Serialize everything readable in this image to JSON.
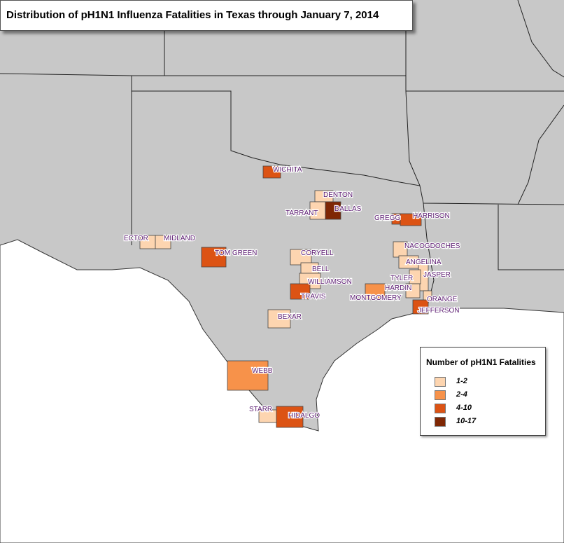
{
  "header": {
    "title": "Distribution of pH1N1 Influenza Fatalities in Texas through January 7, 2014"
  },
  "legend": {
    "title": "Number of pH1N1 Fatalities",
    "items": [
      {
        "label": "1-2",
        "color": "#fdd5b0"
      },
      {
        "label": "2-4",
        "color": "#f7924a"
      },
      {
        "label": "4-10",
        "color": "#dc5314"
      },
      {
        "label": "10-17",
        "color": "#7f2704"
      }
    ]
  },
  "counties": [
    {
      "name": "WICHITA",
      "color": "#dc5314"
    },
    {
      "name": "DENTON",
      "color": "#fdd5b0"
    },
    {
      "name": "TARRANT",
      "color": "#fdd5b0"
    },
    {
      "name": "DALLAS",
      "color": "#7f2704"
    },
    {
      "name": "GREGG",
      "color": "#dc5314"
    },
    {
      "name": "HARRISON",
      "color": "#dc5314"
    },
    {
      "name": "ECTOR",
      "color": "#fdd5b0"
    },
    {
      "name": "MIDLAND",
      "color": "#fdd5b0"
    },
    {
      "name": "TOM GREEN",
      "color": "#dc5314"
    },
    {
      "name": "CORYELL",
      "color": "#fdd5b0"
    },
    {
      "name": "BELL",
      "color": "#fdd5b0"
    },
    {
      "name": "WILLIAMSON",
      "color": "#fdd5b0"
    },
    {
      "name": "TRAVIS",
      "color": "#dc5314"
    },
    {
      "name": "NACOGDOCHES",
      "color": "#fdd5b0"
    },
    {
      "name": "ANGELINA",
      "color": "#fdd5b0"
    },
    {
      "name": "JASPER",
      "color": "#fdd5b0"
    },
    {
      "name": "TYLER",
      "color": "#fdd5b0"
    },
    {
      "name": "HARDIN",
      "color": "#fdd5b0"
    },
    {
      "name": "MONTGOMERY",
      "color": "#f7924a"
    },
    {
      "name": "ORANGE",
      "color": "#fdd5b0"
    },
    {
      "name": "JEFFERSON",
      "color": "#dc5314"
    },
    {
      "name": "BEXAR",
      "color": "#fdd5b0"
    },
    {
      "name": "WEBB",
      "color": "#f7924a"
    },
    {
      "name": "STARR",
      "color": "#fdd5b0"
    },
    {
      "name": "HIDALGO",
      "color": "#dc5314"
    }
  ]
}
